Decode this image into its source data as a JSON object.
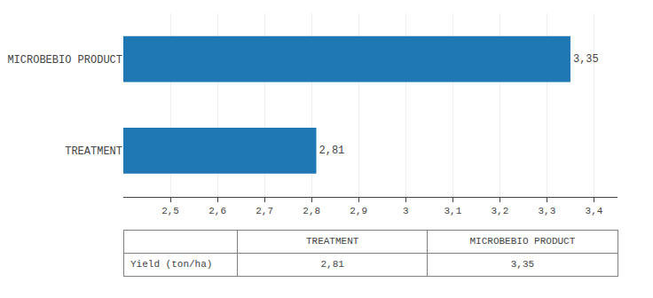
{
  "chart_data": {
    "type": "bar",
    "orientation": "horizontal",
    "categories": [
      "MICROBEBIO PRODUCT",
      "TREATMENT"
    ],
    "values": [
      3.35,
      2.81
    ],
    "value_labels": [
      "3,35",
      "2,81"
    ],
    "data_labels": true,
    "xlim": [
      2.4,
      3.45
    ],
    "xticks": [
      {
        "value": 2.5,
        "label": "2,5"
      },
      {
        "value": 2.6,
        "label": "2,6"
      },
      {
        "value": 2.7,
        "label": "2,7"
      },
      {
        "value": 2.8,
        "label": "2,8"
      },
      {
        "value": 2.9,
        "label": "2,9"
      },
      3,
      {
        "value": 3.1,
        "label": "3,1"
      },
      {
        "value": 3.2,
        "label": "3,2"
      },
      {
        "value": 3.3,
        "label": "3,3"
      },
      {
        "value": 3.4,
        "label": "3,4"
      }
    ],
    "grid": true,
    "table": {
      "row_label": "Yield (ton/ha)",
      "columns": [
        "TREATMENT",
        "MICROBEBIO PRODUCT"
      ],
      "values": [
        2.81,
        3.35
      ],
      "value_labels": [
        "2,81",
        "3,35"
      ]
    }
  }
}
